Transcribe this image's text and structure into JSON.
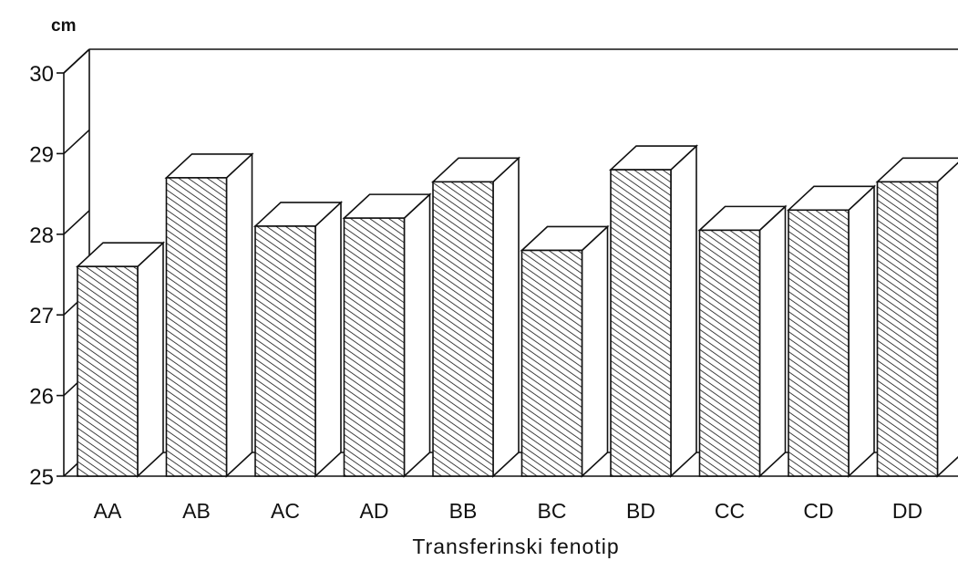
{
  "chart_data": {
    "type": "bar",
    "title": "",
    "unit_label": "cm",
    "xlabel": "Transferinski fenotip",
    "ylabel": "",
    "categories": [
      "AA",
      "AB",
      "AC",
      "AD",
      "BB",
      "BC",
      "BD",
      "CC",
      "CD",
      "DD"
    ],
    "values": [
      27.6,
      28.7,
      28.1,
      28.2,
      28.65,
      27.8,
      28.8,
      28.05,
      28.3,
      28.65
    ],
    "ylim": [
      25,
      30
    ],
    "yticks": [
      "25",
      "26",
      "27",
      "28",
      "29",
      "30"
    ],
    "style": "3d-hatched",
    "grid": false,
    "legend": "none"
  }
}
